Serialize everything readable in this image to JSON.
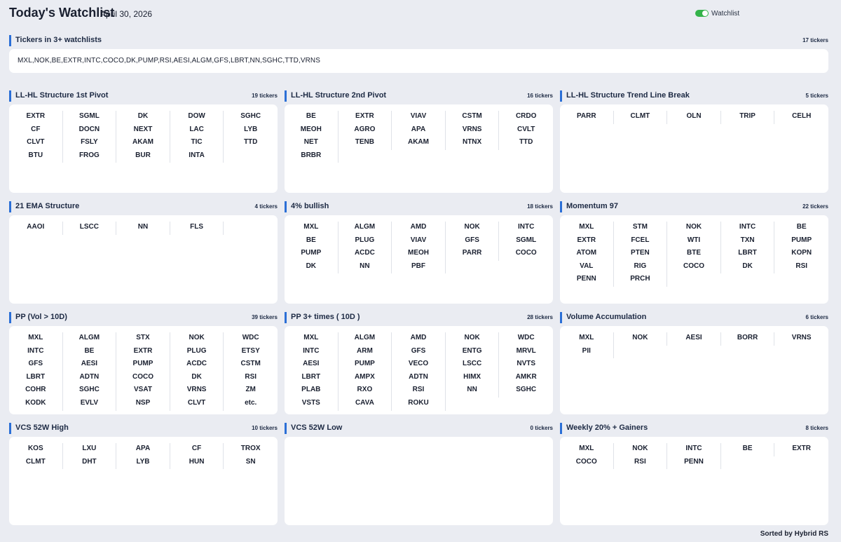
{
  "header": {
    "title": "Today's Watchlist",
    "date": "April 30, 2026",
    "toggle_label": "Watchlist"
  },
  "common": {
    "title": "Tickers in 3+ watchlists",
    "count": "17 tickers",
    "tickers": "MXL,NOK,BE,EXTR,INTC,COCO,DK,PUMP,RSI,AESI,ALGM,GFS,LBRT,NN,SGHC,TTD,VRNS"
  },
  "sections": [
    {
      "title": "LL-HL Structure 1st Pivot",
      "count": "19 tickers",
      "tickers": [
        "EXTR",
        "SGML",
        "DK",
        "DOW",
        "SGHC",
        "CF",
        "DOCN",
        "NEXT",
        "LAC",
        "LYB",
        "CLVT",
        "FSLY",
        "AKAM",
        "TIC",
        "TTD",
        "BTU",
        "FROG",
        "BUR",
        "INTA"
      ]
    },
    {
      "title": "LL-HL Structure 2nd Pivot",
      "count": "16 tickers",
      "tickers": [
        "BE",
        "EXTR",
        "VIAV",
        "CSTM",
        "CRDO",
        "MEOH",
        "AGRO",
        "APA",
        "VRNS",
        "CVLT",
        "NET",
        "TENB",
        "AKAM",
        "NTNX",
        "TTD",
        "BRBR"
      ]
    },
    {
      "title": "LL-HL Structure Trend Line Break",
      "count": "5 tickers",
      "tickers": [
        "PARR",
        "CLMT",
        "OLN",
        "TRIP",
        "CELH"
      ]
    },
    {
      "title": "21 EMA Structure",
      "count": "4 tickers",
      "tickers": [
        "AAOI",
        "LSCC",
        "NN",
        "FLS"
      ]
    },
    {
      "title": "4% bullish",
      "count": "18 tickers",
      "tickers": [
        "MXL",
        "ALGM",
        "AMD",
        "NOK",
        "INTC",
        "BE",
        "PLUG",
        "VIAV",
        "GFS",
        "SGML",
        "PUMP",
        "ACDC",
        "MEOH",
        "PARR",
        "COCO",
        "DK",
        "NN",
        "PBF"
      ]
    },
    {
      "title": "Momentum 97",
      "count": "22 tickers",
      "tickers": [
        "MXL",
        "STM",
        "NOK",
        "INTC",
        "BE",
        "EXTR",
        "FCEL",
        "WTI",
        "TXN",
        "PUMP",
        "ATOM",
        "PTEN",
        "BTE",
        "LBRT",
        "KOPN",
        "VAL",
        "RIG",
        "COCO",
        "DK",
        "RSI",
        "PENN",
        "PRCH"
      ]
    },
    {
      "title": "PP (Vol > 10D)",
      "count": "39 tickers",
      "tickers": [
        "MXL",
        "ALGM",
        "STX",
        "NOK",
        "WDC",
        "INTC",
        "BE",
        "EXTR",
        "PLUG",
        "ETSY",
        "GFS",
        "AESI",
        "PUMP",
        "ACDC",
        "CSTM",
        "LBRT",
        "ADTN",
        "COCO",
        "DK",
        "RSI",
        "COHR",
        "SGHC",
        "VSAT",
        "VRNS",
        "ZM",
        "KODK",
        "EVLV",
        "NSP",
        "CLVT",
        "etc."
      ]
    },
    {
      "title": "PP 3+ times ( 10D )",
      "count": "28 tickers",
      "tickers": [
        "MXL",
        "ALGM",
        "AMD",
        "NOK",
        "WDC",
        "INTC",
        "ARM",
        "GFS",
        "ENTG",
        "MRVL",
        "AESI",
        "PUMP",
        "VECO",
        "LSCC",
        "NVTS",
        "LBRT",
        "AMPX",
        "ADTN",
        "HIMX",
        "AMKR",
        "PLAB",
        "RXO",
        "RSI",
        "NN",
        "SGHC",
        "VSTS",
        "CAVA",
        "ROKU"
      ]
    },
    {
      "title": "Volume Accumulation",
      "count": "6 tickers",
      "tickers": [
        "MXL",
        "NOK",
        "AESI",
        "BORR",
        "VRNS",
        "PII"
      ]
    },
    {
      "title": "VCS 52W High",
      "count": "10 tickers",
      "tickers": [
        "KOS",
        "LXU",
        "APA",
        "CF",
        "TROX",
        "CLMT",
        "DHT",
        "LYB",
        "HUN",
        "SN"
      ]
    },
    {
      "title": "VCS 52W Low",
      "count": "0 tickers",
      "tickers": []
    },
    {
      "title": "Weekly 20% + Gainers",
      "count": "8 tickers",
      "tickers": [
        "MXL",
        "NOK",
        "INTC",
        "BE",
        "EXTR",
        "COCO",
        "RSI",
        "PENN"
      ]
    }
  ],
  "footer": "Sorted by Hybrid RS"
}
